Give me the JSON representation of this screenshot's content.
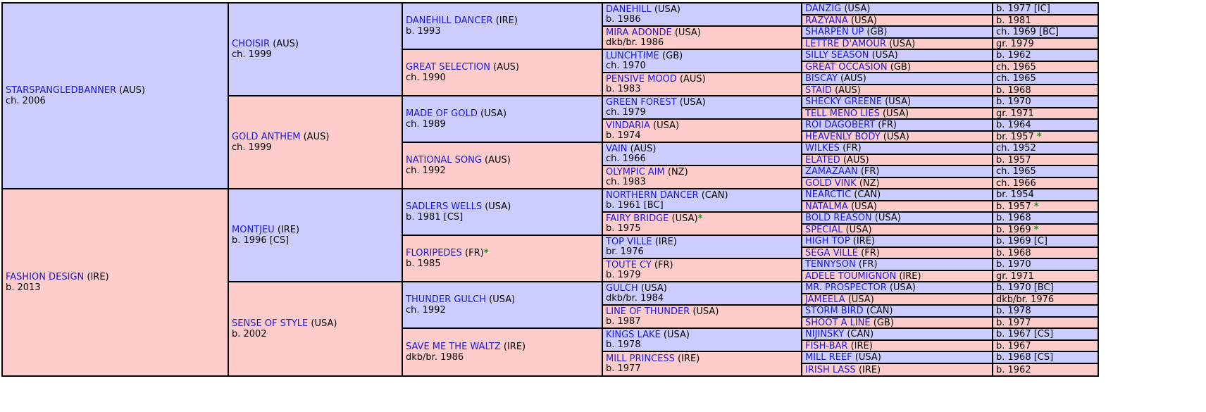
{
  "pedigree": {
    "gen1": [
      {
        "name": "STARSPANGLEDBANNER",
        "country": "(AUS)",
        "info": "ch. 2006",
        "sex": "m"
      },
      {
        "name": "FASHION DESIGN",
        "country": "(IRE)",
        "info": "b. 2013",
        "sex": "f"
      }
    ],
    "gen2": [
      {
        "name": "CHOISIR",
        "country": "(AUS)",
        "info": "ch. 1999",
        "sex": "m"
      },
      {
        "name": "GOLD ANTHEM",
        "country": "(AUS)",
        "info": "ch. 1999",
        "sex": "f"
      },
      {
        "name": "MONTJEU",
        "country": "(IRE)",
        "info": "b. 1996 [CS]",
        "sex": "m"
      },
      {
        "name": "SENSE OF STYLE",
        "country": "(USA)",
        "info": "b. 2002",
        "sex": "f"
      }
    ],
    "gen3": [
      {
        "name": "DANEHILL DANCER",
        "country": "(IRE)",
        "info": "b. 1993",
        "sex": "m"
      },
      {
        "name": "GREAT SELECTION",
        "country": "(AUS)",
        "info": "ch. 1990",
        "sex": "f"
      },
      {
        "name": "MADE OF GOLD",
        "country": "(USA)",
        "info": "ch. 1989",
        "sex": "m"
      },
      {
        "name": "NATIONAL SONG",
        "country": "(AUS)",
        "info": "ch. 1992",
        "sex": "f"
      },
      {
        "name": "SADLERS WELLS",
        "country": "(USA)",
        "info": "b. 1981 [CS]",
        "sex": "m"
      },
      {
        "name": "FLORIPEDES",
        "country": "(FR)",
        "star": "*",
        "info": "b. 1985",
        "sex": "f"
      },
      {
        "name": "THUNDER GULCH",
        "country": "(USA)",
        "info": "ch. 1992",
        "sex": "m"
      },
      {
        "name": "SAVE ME THE WALTZ",
        "country": "(IRE)",
        "info": "dkb/br. 1986",
        "sex": "f"
      }
    ],
    "gen4": [
      {
        "name": "DANEHILL",
        "country": "(USA)",
        "info": "b. 1986",
        "sex": "m"
      },
      {
        "name": "MIRA ADONDE",
        "country": "(USA)",
        "info": "dkb/br. 1986",
        "sex": "f"
      },
      {
        "name": "LUNCHTIME",
        "country": "(GB)",
        "info": "ch. 1970",
        "sex": "m"
      },
      {
        "name": "PENSIVE MOOD",
        "country": "(AUS)",
        "info": "b. 1983",
        "sex": "f"
      },
      {
        "name": "GREEN FOREST",
        "country": "(USA)",
        "info": "ch. 1979",
        "sex": "m"
      },
      {
        "name": "VINDARIA",
        "country": "(USA)",
        "info": "b. 1974",
        "sex": "f"
      },
      {
        "name": "VAIN",
        "country": "(AUS)",
        "info": "ch. 1966",
        "sex": "m"
      },
      {
        "name": "OLYMPIC AIM",
        "country": "(NZ)",
        "info": "ch. 1983",
        "sex": "f"
      },
      {
        "name": "NORTHERN DANCER",
        "country": "(CAN)",
        "info": "b. 1961 [BC]",
        "sex": "m"
      },
      {
        "name": "FAIRY BRIDGE",
        "country": "(USA)",
        "star": "*",
        "info": "b. 1975",
        "sex": "f"
      },
      {
        "name": "TOP VILLE",
        "country": "(IRE)",
        "info": "br. 1976",
        "sex": "m"
      },
      {
        "name": "TOUTE CY",
        "country": "(FR)",
        "info": "b. 1979",
        "sex": "f"
      },
      {
        "name": "GULCH",
        "country": "(USA)",
        "info": "dkb/br. 1984",
        "sex": "m"
      },
      {
        "name": "LINE OF THUNDER",
        "country": "(USA)",
        "info": "b. 1987",
        "sex": "f"
      },
      {
        "name": "KINGS LAKE",
        "country": "(USA)",
        "info": "b. 1978",
        "sex": "m"
      },
      {
        "name": "MILL PRINCESS",
        "country": "(IRE)",
        "info": "b. 1977",
        "sex": "f"
      }
    ],
    "gen5": [
      {
        "name": "DANZIG",
        "country": "(USA)",
        "info": "b. 1977 [IC]",
        "sex": "m"
      },
      {
        "name": "RAZYANA",
        "country": "(USA)",
        "info": "b. 1981",
        "sex": "f"
      },
      {
        "name": "SHARPEN UP",
        "country": "(GB)",
        "info": "ch. 1969 [BC]",
        "sex": "m"
      },
      {
        "name": "LETTRE D'AMOUR",
        "country": "(USA)",
        "info": "gr. 1979",
        "sex": "f"
      },
      {
        "name": "SILLY SEASON",
        "country": "(USA)",
        "info": "b. 1962",
        "sex": "m"
      },
      {
        "name": "GREAT OCCASION",
        "country": "(GB)",
        "info": "ch. 1965",
        "sex": "f"
      },
      {
        "name": "BISCAY",
        "country": "(AUS)",
        "info": "ch. 1965",
        "sex": "m"
      },
      {
        "name": "STAID",
        "country": "(AUS)",
        "info": "b. 1968",
        "sex": "f"
      },
      {
        "name": "SHECKY GREENE",
        "country": "(USA)",
        "info": "b. 1970",
        "sex": "m"
      },
      {
        "name": "TELL MENO LIES",
        "country": "(USA)",
        "info": "gr. 1971",
        "sex": "f"
      },
      {
        "name": "ROI DAGOBERT",
        "country": "(FR)",
        "info": "b. 1964",
        "sex": "m"
      },
      {
        "name": "HEAVENLY BODY",
        "country": "(USA)",
        "info": "br. 1957",
        "infostar": "*",
        "sex": "f"
      },
      {
        "name": "WILKES",
        "country": "(FR)",
        "info": "ch. 1952",
        "sex": "m"
      },
      {
        "name": "ELATED",
        "country": "(AUS)",
        "info": "b. 1957",
        "sex": "f"
      },
      {
        "name": "ZAMAZAAN",
        "country": "(FR)",
        "info": "ch. 1965",
        "sex": "m"
      },
      {
        "name": "GOLD VINK",
        "country": "(NZ)",
        "info": "ch. 1966",
        "sex": "f"
      },
      {
        "name": "NEARCTIC",
        "country": "(CAN)",
        "info": "br. 1954",
        "sex": "m"
      },
      {
        "name": "NATALMA",
        "country": "(USA)",
        "info": "b. 1957",
        "infostar": "*",
        "sex": "f"
      },
      {
        "name": "BOLD REASON",
        "country": "(USA)",
        "info": "b. 1968",
        "sex": "m"
      },
      {
        "name": "SPECIAL",
        "country": "(USA)",
        "info": "b. 1969",
        "infostar": "*",
        "sex": "f"
      },
      {
        "name": "HIGH TOP",
        "country": "(IRE)",
        "info": "b. 1969 [C]",
        "sex": "m"
      },
      {
        "name": "SEGA VILLE",
        "country": "(FR)",
        "info": "b. 1968",
        "sex": "f"
      },
      {
        "name": "TENNYSON",
        "country": "(FR)",
        "info": "b. 1970",
        "sex": "m"
      },
      {
        "name": "ADELE TOUMIGNON",
        "country": "(IRE)",
        "info": "gr. 1971",
        "sex": "f"
      },
      {
        "name": "MR. PROSPECTOR",
        "country": "(USA)",
        "info": "b. 1970 [BC]",
        "sex": "m"
      },
      {
        "name": "JAMEELA",
        "country": "(USA)",
        "info": "dkb/br. 1976",
        "sex": "f"
      },
      {
        "name": "STORM BIRD",
        "country": "(CAN)",
        "info": "b. 1978",
        "sex": "m"
      },
      {
        "name": "SHOOT A LINE",
        "country": "(GB)",
        "info": "b. 1977",
        "sex": "f"
      },
      {
        "name": "NIJINSKY",
        "country": "(CAN)",
        "info": "b. 1967 [CS]",
        "sex": "m"
      },
      {
        "name": "FISH-BAR",
        "country": "(IRE)",
        "info": "b. 1967",
        "sex": "f"
      },
      {
        "name": "MILL REEF",
        "country": "(USA)",
        "info": "b. 1968 [CS]",
        "sex": "m"
      },
      {
        "name": "IRISH LASS",
        "country": "(IRE)",
        "info": "b. 1962",
        "sex": "f"
      }
    ]
  }
}
